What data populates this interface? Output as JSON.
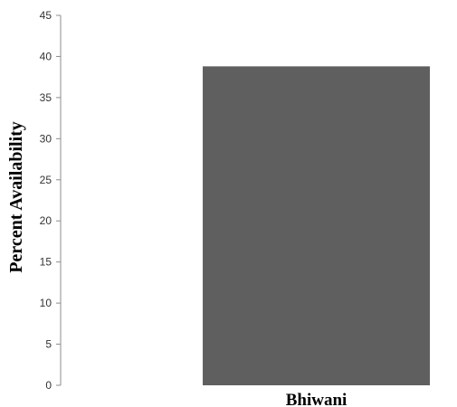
{
  "chart_data": {
    "type": "bar",
    "categories": [
      "Bhiwani"
    ],
    "values": [
      38.8
    ],
    "title": "",
    "xlabel": "",
    "ylabel": "Percent Availability",
    "ylim": [
      0,
      45
    ],
    "y_ticks": [
      "0",
      "5",
      "10",
      "15",
      "20",
      "25",
      "30",
      "35",
      "40",
      "45"
    ],
    "grid": false,
    "bar_color": "#5f5f5f"
  }
}
